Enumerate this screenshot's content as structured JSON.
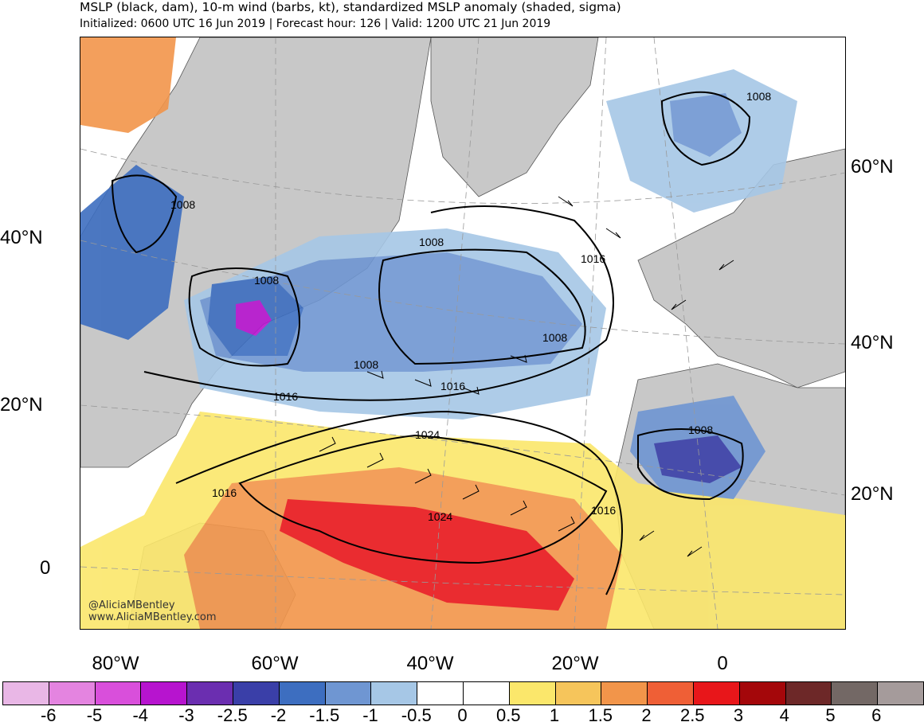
{
  "header": {
    "title": "MSLP (black, dam), 10-m wind (barbs, kt), standardized MSLP anomaly (shaded, sigma)",
    "subtitle": "Initialized: 0600 UTC 16 Jun 2019 | Forecast hour: 126 | Valid: 1200 UTC 21 Jun 2019"
  },
  "axes": {
    "left_lat_labels": [
      "40°N",
      "20°N",
      "0"
    ],
    "right_lat_labels": [
      "60°N",
      "40°N",
      "20°N"
    ],
    "lon_labels": [
      "80°W",
      "60°W",
      "40°W",
      "20°W",
      "0"
    ]
  },
  "contour_labels": [
    "1008",
    "1008",
    "1008",
    "1008",
    "1008",
    "1008",
    "1008",
    "1016",
    "1016",
    "1016",
    "1016",
    "1016",
    "1024",
    "1024"
  ],
  "credits": {
    "handle": "@AliciaMBentley",
    "website": "www.AliciaMBentley.com"
  },
  "colorbar": {
    "labels": [
      "-6",
      "-5",
      "-4",
      "-3",
      "-2.5",
      "-2",
      "-1.5",
      "-1",
      "-0.5",
      "0",
      "0.5",
      "1",
      "1.5",
      "2",
      "2.5",
      "3",
      "4",
      "5",
      "6"
    ],
    "colors": [
      "#e9b7e6",
      "#e484e0",
      "#d94fdb",
      "#b714cf",
      "#6b2eb0",
      "#3a3fa8",
      "#3d6ec0",
      "#6f96d2",
      "#a6c7e6",
      "#ffffff",
      "#ffffff",
      "#fbe76b",
      "#f6c55b",
      "#f2954a",
      "#ef5f36",
      "#e8161a",
      "#a4070a",
      "#6d2828",
      "#736865",
      "#a59b9b"
    ]
  },
  "map_colors": {
    "land": "#c8c8c8",
    "ocean_neutral": "#ffffff",
    "coast": "#555555",
    "contour": "#000000"
  }
}
